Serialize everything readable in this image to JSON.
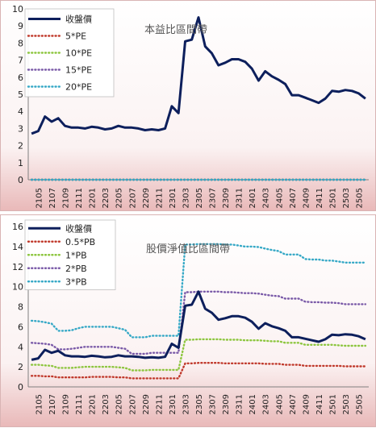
{
  "chart_data": [
    {
      "type": "line",
      "title": "本益比區間帶",
      "ylim": [
        0,
        10
      ],
      "yticks": [
        "0",
        "1",
        "2",
        "3",
        "4",
        "5",
        "6",
        "7",
        "8",
        "9",
        "10"
      ],
      "x": [
        "2104",
        "2105",
        "2106",
        "2107",
        "2108",
        "2109",
        "2110",
        "2111",
        "2112",
        "2201",
        "2202",
        "2203",
        "2204",
        "2205",
        "2206",
        "2207",
        "2208",
        "2209",
        "2210",
        "2211",
        "2212",
        "2301",
        "2302",
        "2303",
        "2304",
        "2305",
        "2306",
        "2307",
        "2308",
        "2309",
        "2310",
        "2311",
        "2312",
        "2401",
        "2402",
        "2403",
        "2404",
        "2405",
        "2406",
        "2407",
        "2408",
        "2409",
        "2410",
        "2411",
        "2412",
        "2501",
        "2502",
        "2503",
        "2504",
        "2505",
        "2506"
      ],
      "xticks": [
        "2105",
        "2107",
        "2109",
        "2111",
        "2201",
        "2203",
        "2205",
        "2207",
        "2209",
        "2211",
        "2301",
        "2303",
        "2305",
        "2307",
        "2309",
        "2311",
        "2401",
        "2403",
        "2405",
        "2407",
        "2409",
        "2411",
        "2501",
        "2503",
        "2505"
      ],
      "legend_position": "top-left",
      "series": [
        {
          "name": "收盤價",
          "color": "#0d1f5c",
          "style": "solid",
          "values": [
            2.7,
            2.85,
            3.7,
            3.4,
            3.6,
            3.15,
            3.05,
            3.05,
            3.0,
            3.1,
            3.05,
            2.95,
            3.0,
            3.15,
            3.05,
            3.05,
            3.0,
            2.9,
            2.95,
            2.9,
            3.0,
            4.3,
            3.9,
            8.1,
            8.2,
            9.5,
            7.8,
            7.4,
            6.7,
            6.85,
            7.05,
            7.05,
            6.9,
            6.5,
            5.8,
            6.35,
            6.05,
            5.85,
            5.6,
            4.95,
            4.95,
            4.8,
            4.65,
            4.5,
            4.75,
            5.2,
            5.15,
            5.25,
            5.2,
            5.05,
            4.75
          ]
        },
        {
          "name": "5*PE",
          "color": "#c0392b",
          "style": "dotted",
          "values": [
            0,
            0,
            0,
            0,
            0,
            0,
            0,
            0,
            0,
            0,
            0,
            0,
            0,
            0,
            0,
            0,
            0,
            0,
            0,
            0,
            0,
            0,
            0,
            0,
            0,
            0,
            0,
            0,
            0,
            0,
            0,
            0,
            0,
            0,
            0,
            0,
            0,
            0,
            0,
            0,
            0,
            0,
            0,
            0,
            0,
            0,
            0,
            0,
            0,
            0,
            0
          ]
        },
        {
          "name": "10*PE",
          "color": "#8dc63f",
          "style": "dotted",
          "values": [
            0,
            0,
            0,
            0,
            0,
            0,
            0,
            0,
            0,
            0,
            0,
            0,
            0,
            0,
            0,
            0,
            0,
            0,
            0,
            0,
            0,
            0,
            0,
            0,
            0,
            0,
            0,
            0,
            0,
            0,
            0,
            0,
            0,
            0,
            0,
            0,
            0,
            0,
            0,
            0,
            0,
            0,
            0,
            0,
            0,
            0,
            0,
            0,
            0,
            0,
            0
          ]
        },
        {
          "name": "15*PE",
          "color": "#7a5aa8",
          "style": "dotted",
          "values": [
            0,
            0,
            0,
            0,
            0,
            0,
            0,
            0,
            0,
            0,
            0,
            0,
            0,
            0,
            0,
            0,
            0,
            0,
            0,
            0,
            0,
            0,
            0,
            0,
            0,
            0,
            0,
            0,
            0,
            0,
            0,
            0,
            0,
            0,
            0,
            0,
            0,
            0,
            0,
            0,
            0,
            0,
            0,
            0,
            0,
            0,
            0,
            0,
            0,
            0,
            0
          ]
        },
        {
          "name": "20*PE",
          "color": "#35a8c6",
          "style": "dotted",
          "values": [
            0,
            0,
            0,
            0,
            0,
            0,
            0,
            0,
            0,
            0,
            0,
            0,
            0,
            0,
            0,
            0,
            0,
            0,
            0,
            0,
            0,
            0,
            0,
            0,
            0,
            0,
            0,
            0,
            0,
            0,
            0,
            0,
            0,
            0,
            0,
            0,
            0,
            0,
            0,
            0,
            0,
            0,
            0,
            0,
            0,
            0,
            0,
            0,
            0,
            0,
            0
          ]
        }
      ]
    },
    {
      "type": "line",
      "title": "股價淨值比區間帶",
      "ylim": [
        0,
        16
      ],
      "yticks": [
        "0",
        "2",
        "4",
        "6",
        "8",
        "10",
        "12",
        "14",
        "16"
      ],
      "x": [
        "2104",
        "2105",
        "2106",
        "2107",
        "2108",
        "2109",
        "2110",
        "2111",
        "2112",
        "2201",
        "2202",
        "2203",
        "2204",
        "2205",
        "2206",
        "2207",
        "2208",
        "2209",
        "2210",
        "2211",
        "2212",
        "2301",
        "2302",
        "2303",
        "2304",
        "2305",
        "2306",
        "2307",
        "2308",
        "2309",
        "2310",
        "2311",
        "2312",
        "2401",
        "2402",
        "2403",
        "2404",
        "2405",
        "2406",
        "2407",
        "2408",
        "2409",
        "2410",
        "2411",
        "2412",
        "2501",
        "2502",
        "2503",
        "2504",
        "2505",
        "2506"
      ],
      "xticks": [
        "2105",
        "2107",
        "2109",
        "2111",
        "2201",
        "2203",
        "2205",
        "2207",
        "2209",
        "2211",
        "2301",
        "2303",
        "2305",
        "2307",
        "2309",
        "2311",
        "2401",
        "2403",
        "2405",
        "2407",
        "2409",
        "2411",
        "2501",
        "2503",
        "2505"
      ],
      "legend_position": "top-left",
      "series": [
        {
          "name": "收盤價",
          "color": "#0d1f5c",
          "style": "solid",
          "values": [
            2.7,
            2.85,
            3.7,
            3.4,
            3.6,
            3.15,
            3.05,
            3.05,
            3.0,
            3.1,
            3.05,
            2.95,
            3.0,
            3.15,
            3.05,
            3.05,
            3.0,
            2.9,
            2.95,
            2.9,
            3.0,
            4.3,
            3.9,
            8.1,
            8.2,
            9.5,
            7.8,
            7.4,
            6.7,
            6.85,
            7.05,
            7.05,
            6.9,
            6.5,
            5.8,
            6.35,
            6.05,
            5.85,
            5.6,
            4.95,
            4.95,
            4.8,
            4.65,
            4.5,
            4.75,
            5.2,
            5.15,
            5.25,
            5.2,
            5.05,
            4.75
          ]
        },
        {
          "name": "0.5*PB",
          "color": "#c0392b",
          "style": "dotted",
          "values": [
            1.1,
            1.1,
            1.05,
            1.05,
            0.95,
            0.95,
            0.95,
            0.95,
            0.95,
            1.0,
            1.0,
            1.0,
            1.0,
            0.95,
            0.95,
            0.85,
            0.85,
            0.85,
            0.85,
            0.85,
            0.85,
            0.85,
            0.85,
            2.35,
            2.35,
            2.4,
            2.4,
            2.4,
            2.4,
            2.35,
            2.35,
            2.35,
            2.35,
            2.35,
            2.35,
            2.3,
            2.3,
            2.3,
            2.2,
            2.2,
            2.2,
            2.1,
            2.1,
            2.1,
            2.1,
            2.1,
            2.1,
            2.05,
            2.05,
            2.05,
            2.05
          ]
        },
        {
          "name": "1*PB",
          "color": "#8dc63f",
          "style": "dotted",
          "values": [
            2.2,
            2.2,
            2.15,
            2.1,
            1.9,
            1.9,
            1.9,
            1.95,
            2.0,
            2.0,
            2.0,
            2.0,
            2.0,
            1.95,
            1.9,
            1.65,
            1.65,
            1.65,
            1.7,
            1.7,
            1.7,
            1.7,
            1.7,
            4.7,
            4.7,
            4.75,
            4.75,
            4.75,
            4.75,
            4.7,
            4.7,
            4.7,
            4.65,
            4.65,
            4.65,
            4.6,
            4.55,
            4.55,
            4.4,
            4.4,
            4.4,
            4.2,
            4.2,
            4.2,
            4.2,
            4.2,
            4.15,
            4.1,
            4.1,
            4.1,
            4.1
          ]
        },
        {
          "name": "2*PB",
          "color": "#7a5aa8",
          "style": "dotted",
          "values": [
            4.4,
            4.35,
            4.3,
            4.2,
            3.75,
            3.75,
            3.8,
            3.9,
            4.0,
            4.0,
            4.0,
            4.0,
            4.0,
            3.9,
            3.8,
            3.3,
            3.3,
            3.3,
            3.4,
            3.4,
            3.4,
            3.4,
            3.4,
            9.45,
            9.45,
            9.5,
            9.5,
            9.5,
            9.5,
            9.45,
            9.45,
            9.4,
            9.35,
            9.35,
            9.3,
            9.2,
            9.1,
            9.05,
            8.8,
            8.8,
            8.8,
            8.5,
            8.45,
            8.45,
            8.4,
            8.4,
            8.35,
            8.25,
            8.25,
            8.25,
            8.25
          ]
        },
        {
          "name": "3*PB",
          "color": "#35a8c6",
          "style": "dotted",
          "values": [
            6.6,
            6.55,
            6.45,
            6.3,
            5.6,
            5.6,
            5.65,
            5.85,
            6.0,
            6.0,
            6.0,
            6.0,
            6.0,
            5.85,
            5.7,
            4.95,
            4.95,
            4.95,
            5.1,
            5.1,
            5.1,
            5.1,
            5.1,
            14.2,
            14.2,
            14.25,
            14.25,
            14.25,
            14.25,
            14.2,
            14.2,
            14.1,
            14.0,
            14.0,
            13.95,
            13.8,
            13.65,
            13.55,
            13.2,
            13.2,
            13.2,
            12.75,
            12.7,
            12.7,
            12.6,
            12.6,
            12.5,
            12.4,
            12.4,
            12.4,
            12.4
          ]
        }
      ]
    }
  ]
}
